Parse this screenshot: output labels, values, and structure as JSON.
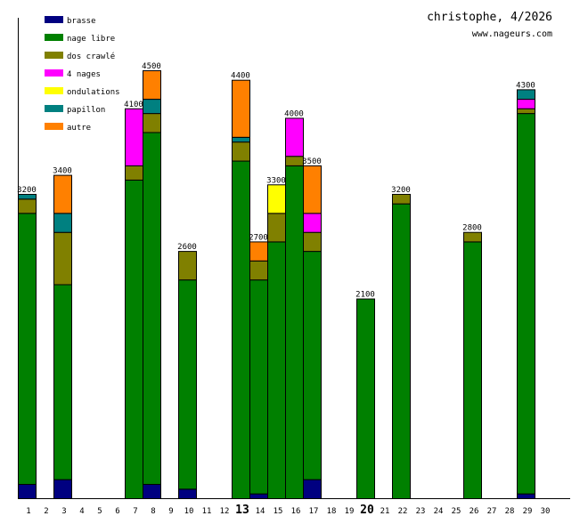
{
  "header": {
    "title": "christophe, 4/2026",
    "site": "www.nageurs.com"
  },
  "chart_data": {
    "type": "bar",
    "stacked": true,
    "title": "christophe, 4/2026",
    "xlabel": "",
    "ylabel": "",
    "ylim": [
      0,
      4500
    ],
    "legend_position": "top-left",
    "highlighted_days": [
      13,
      20
    ],
    "categories": [
      1,
      2,
      3,
      4,
      5,
      6,
      7,
      8,
      9,
      10,
      11,
      12,
      13,
      14,
      15,
      16,
      17,
      18,
      19,
      20,
      21,
      22,
      23,
      24,
      25,
      26,
      27,
      28,
      29,
      30
    ],
    "series": [
      {
        "name": "brasse",
        "color": "#000080",
        "values": {
          "1": 150,
          "3": 200,
          "8": 150,
          "10": 100,
          "14": 50,
          "17": 200,
          "29": 50
        }
      },
      {
        "name": "nage libre",
        "color": "#008000",
        "values": {
          "1": 2850,
          "3": 2050,
          "7": 3350,
          "8": 3700,
          "10": 2200,
          "13": 3550,
          "14": 2250,
          "15": 2700,
          "16": 3500,
          "17": 2400,
          "20": 2100,
          "22": 3100,
          "26": 2700,
          "29": 4000
        }
      },
      {
        "name": "dos crawlé",
        "color": "#808000",
        "values": {
          "1": 150,
          "3": 550,
          "7": 150,
          "8": 200,
          "10": 300,
          "13": 200,
          "14": 200,
          "15": 300,
          "16": 100,
          "17": 200,
          "22": 100,
          "26": 100,
          "29": 50
        }
      },
      {
        "name": "4 nages",
        "color": "#ff00ff",
        "values": {
          "7": 600,
          "16": 400,
          "17": 200,
          "29": 100
        }
      },
      {
        "name": "ondulations",
        "color": "#ffff00",
        "values": {
          "15": 300
        }
      },
      {
        "name": "papillon",
        "color": "#008080",
        "values": {
          "1": 50,
          "3": 200,
          "8": 150,
          "13": 50,
          "29": 100
        }
      },
      {
        "name": "autre",
        "color": "#ff8000",
        "values": {
          "3": 400,
          "8": 300,
          "13": 600,
          "14": 200,
          "17": 500
        }
      }
    ],
    "totals": {
      "1": "3200",
      "3": "3400",
      "7": "4100",
      "8": "4500",
      "10": "2600",
      "13": "4400",
      "14": "2700",
      "15": "3300",
      "16": "4000",
      "17": "3500",
      "20": "2100",
      "22": "3200",
      "26": "2800",
      "29": "4300"
    }
  }
}
